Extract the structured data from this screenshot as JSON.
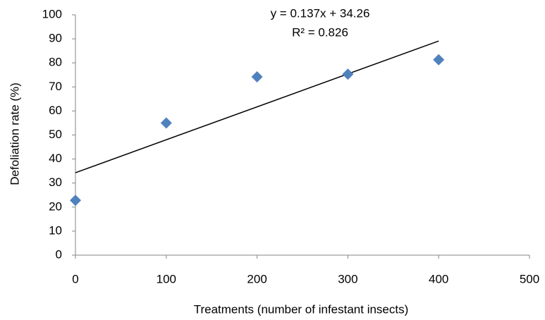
{
  "chart_data": {
    "type": "scatter",
    "x_label": "Treatments (number of infestant insects)",
    "y_label": "Defoliation rate (%)",
    "annotations": [
      "y = 0.137x + 34.26",
      "R² = 0.826"
    ],
    "x": [
      0,
      100,
      200,
      300,
      400
    ],
    "series": [
      {
        "color": "#4f81bd",
        "values": [
          22.8,
          55,
          74.2,
          75.3,
          81.3
        ]
      }
    ],
    "trendline": {
      "color": "#000000",
      "x": [
        0,
        400
      ],
      "values": [
        34.3,
        89.1
      ]
    },
    "xlim": [
      0,
      500
    ],
    "xticks": [
      0,
      100,
      200,
      300,
      400,
      500
    ],
    "ylim": [
      0,
      100
    ],
    "yticks": [
      0,
      10,
      20,
      30,
      40,
      50,
      60,
      70,
      80,
      90,
      100
    ],
    "grid": false
  }
}
